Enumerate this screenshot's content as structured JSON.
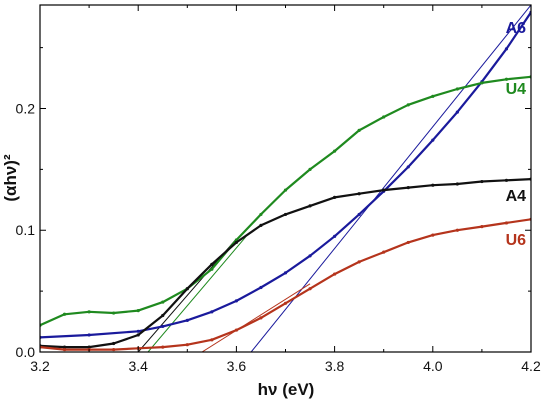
{
  "chart_data": {
    "type": "line",
    "title": "",
    "xlabel": "hν (eV)",
    "ylabel": "(αhν)²",
    "xlim": [
      3.2,
      4.2
    ],
    "ylim": [
      0.0,
      0.285
    ],
    "x_ticks": [
      3.2,
      3.4,
      3.6,
      3.8,
      4.0,
      4.2
    ],
    "x_tick_labels": [
      "3.2",
      "3.4",
      "3.6",
      "3.8",
      "4.0",
      "4.2"
    ],
    "y_ticks": [
      0.0,
      0.1,
      0.2
    ],
    "y_tick_labels": [
      "0.0",
      "0.1",
      "0.2"
    ],
    "grid": false,
    "legend": "none",
    "series": [
      {
        "name": "A6",
        "color": "#1a1a9c",
        "x": [
          3.2,
          3.3,
          3.4,
          3.45,
          3.5,
          3.55,
          3.6,
          3.65,
          3.7,
          3.75,
          3.8,
          3.85,
          3.9,
          3.95,
          4.0,
          4.05,
          4.1,
          4.15,
          4.2
        ],
        "y": [
          0.012,
          0.014,
          0.017,
          0.021,
          0.026,
          0.033,
          0.042,
          0.053,
          0.065,
          0.079,
          0.095,
          0.113,
          0.132,
          0.152,
          0.174,
          0.197,
          0.222,
          0.249,
          0.279
        ]
      },
      {
        "name": "U4",
        "color": "#1f8a1f",
        "x": [
          3.2,
          3.25,
          3.3,
          3.35,
          3.4,
          3.45,
          3.5,
          3.55,
          3.6,
          3.65,
          3.7,
          3.75,
          3.8,
          3.85,
          3.9,
          3.95,
          4.0,
          4.05,
          4.1,
          4.15,
          4.2
        ],
        "y": [
          0.022,
          0.031,
          0.033,
          0.032,
          0.034,
          0.041,
          0.052,
          0.068,
          0.092,
          0.113,
          0.133,
          0.15,
          0.165,
          0.182,
          0.193,
          0.203,
          0.21,
          0.216,
          0.221,
          0.224,
          0.226
        ]
      },
      {
        "name": "A4",
        "color": "#111111",
        "x": [
          3.2,
          3.25,
          3.3,
          3.35,
          3.4,
          3.45,
          3.5,
          3.55,
          3.6,
          3.65,
          3.7,
          3.75,
          3.8,
          3.85,
          3.9,
          3.95,
          4.0,
          4.05,
          4.1,
          4.15,
          4.2
        ],
        "y": [
          0.005,
          0.004,
          0.004,
          0.007,
          0.014,
          0.03,
          0.052,
          0.072,
          0.09,
          0.104,
          0.113,
          0.12,
          0.127,
          0.13,
          0.133,
          0.135,
          0.137,
          0.138,
          0.14,
          0.141,
          0.142
        ]
      },
      {
        "name": "U6",
        "color": "#b5341c",
        "x": [
          3.2,
          3.25,
          3.3,
          3.35,
          3.4,
          3.45,
          3.5,
          3.55,
          3.6,
          3.65,
          3.7,
          3.75,
          3.8,
          3.85,
          3.9,
          3.95,
          4.0,
          4.05,
          4.1,
          4.15,
          4.2
        ],
        "y": [
          0.004,
          0.002,
          0.002,
          0.002,
          0.003,
          0.004,
          0.006,
          0.01,
          0.018,
          0.028,
          0.04,
          0.052,
          0.064,
          0.074,
          0.082,
          0.09,
          0.096,
          0.1,
          0.103,
          0.106,
          0.109
        ]
      }
    ],
    "tangent_lines": [
      {
        "color": "#1a1a9c",
        "x": [
          3.63,
          4.2
        ],
        "y": [
          0.0,
          0.285
        ]
      },
      {
        "color": "#1f8a1f",
        "x": [
          3.42,
          3.62
        ],
        "y": [
          0.0,
          0.095
        ]
      },
      {
        "color": "#111111",
        "x": [
          3.4,
          3.6
        ],
        "y": [
          0.0,
          0.093
        ]
      },
      {
        "color": "#b5341c",
        "x": [
          3.53,
          3.75
        ],
        "y": [
          0.0,
          0.056
        ]
      }
    ]
  }
}
